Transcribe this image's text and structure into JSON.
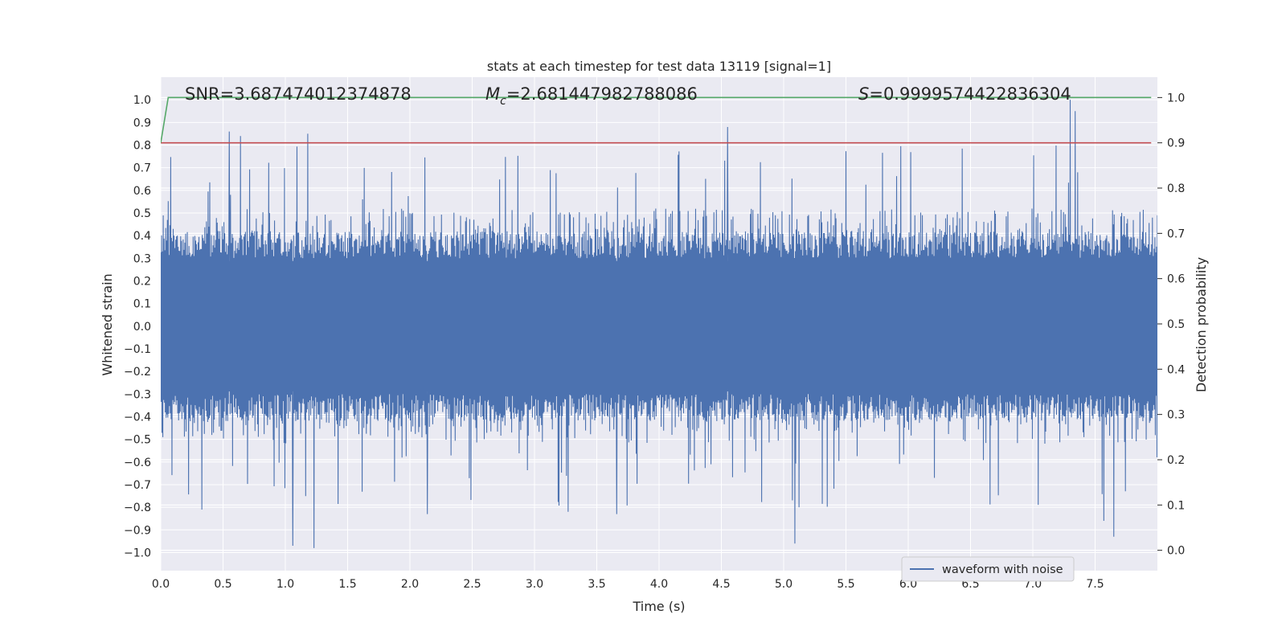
{
  "chart_data": {
    "type": "line",
    "title": "stats at each timestep for test data 13119 [signal=1]",
    "xlabel": "Time (s)",
    "ylabel_left": "Whitened strain",
    "ylabel_right": "Detection probability",
    "xlim": [
      0,
      8
    ],
    "ylim_left": [
      -1.08,
      1.1
    ],
    "ylim_right": [
      -0.045,
      1.045
    ],
    "x_ticks": [
      0.0,
      0.5,
      1.0,
      1.5,
      2.0,
      2.5,
      3.0,
      3.5,
      4.0,
      4.5,
      5.0,
      5.5,
      6.0,
      6.5,
      7.0,
      7.5
    ],
    "x_tick_labels": [
      "0.0",
      "0.5",
      "1.0",
      "1.5",
      "2.0",
      "2.5",
      "3.0",
      "3.5",
      "4.0",
      "4.5",
      "5.0",
      "5.5",
      "6.0",
      "6.5",
      "7.0",
      "7.5"
    ],
    "y_left_ticks": [
      1.0,
      0.9,
      0.8,
      0.7,
      0.6,
      0.5,
      0.4,
      0.3,
      0.2,
      0.1,
      0.0,
      -0.1,
      -0.2,
      -0.3,
      -0.4,
      -0.5,
      -0.6,
      -0.7,
      -0.8,
      -0.9,
      -1.0
    ],
    "y_left_tick_labels": [
      "1.0",
      "0.9",
      "0.8",
      "0.7",
      "0.6",
      "0.5",
      "0.4",
      "0.3",
      "0.2",
      "0.1",
      "0.0",
      "−0.1",
      "−0.2",
      "−0.3",
      "−0.4",
      "−0.5",
      "−0.6",
      "−0.7",
      "−0.8",
      "−0.9",
      "−1.0"
    ],
    "y_right_ticks": [
      1.0,
      0.9,
      0.8,
      0.7,
      0.6,
      0.5,
      0.4,
      0.3,
      0.2,
      0.1,
      0.0
    ],
    "y_right_tick_labels": [
      "1.0",
      "0.9",
      "0.8",
      "0.7",
      "0.6",
      "0.5",
      "0.4",
      "0.3",
      "0.2",
      "0.1",
      "0.0"
    ],
    "grid": true,
    "legend": {
      "placement": "lower-right",
      "entries": [
        "waveform with noise"
      ]
    },
    "annotations": {
      "snr": "SNR=3.687474012374878",
      "mc_symbol": "M",
      "mc_subscript": "c",
      "mc_value": "=2.681447982788086",
      "s_symbol": "S",
      "s_value": "=0.9999574422836304"
    },
    "series": [
      {
        "name": "waveform with noise",
        "axis": "left",
        "color": "#4c72b0",
        "description_values": {
          "typical_upper": 0.4,
          "typical_lower": -0.4,
          "max": 1.0,
          "min": -0.98,
          "duration": 8.0
        },
        "peaks": [
          {
            "x": 0.55,
            "y": 0.86
          },
          {
            "x": 0.64,
            "y": 0.84
          },
          {
            "x": 1.18,
            "y": 0.85
          },
          {
            "x": 4.55,
            "y": 0.88
          },
          {
            "x": 7.3,
            "y": 1.0
          },
          {
            "x": 7.34,
            "y": 0.95
          },
          {
            "x": 1.06,
            "y": -0.97
          },
          {
            "x": 1.23,
            "y": -0.98
          },
          {
            "x": 5.09,
            "y": -0.96
          },
          {
            "x": 7.65,
            "y": -0.93
          },
          {
            "x": 0.33,
            "y": -0.81
          },
          {
            "x": 2.14,
            "y": -0.83
          },
          {
            "x": 3.27,
            "y": -0.82
          },
          {
            "x": 3.66,
            "y": -0.83
          },
          {
            "x": 7.57,
            "y": -0.86
          }
        ]
      },
      {
        "name": "",
        "axis": "right",
        "color": "#55a868",
        "x": [
          0.0,
          0.06,
          7.95
        ],
        "y": [
          0.9,
          1.0,
          1.0
        ]
      },
      {
        "name": "",
        "axis": "right",
        "color": "#c44e52",
        "x": [
          0.0,
          7.95
        ],
        "y": [
          0.9,
          0.9
        ]
      }
    ]
  },
  "colors": {
    "plot_background": "#eaeaf2",
    "grid": "#ffffff",
    "waveform": "#4c72b0",
    "probability": "#55a868",
    "threshold": "#c44e52"
  }
}
